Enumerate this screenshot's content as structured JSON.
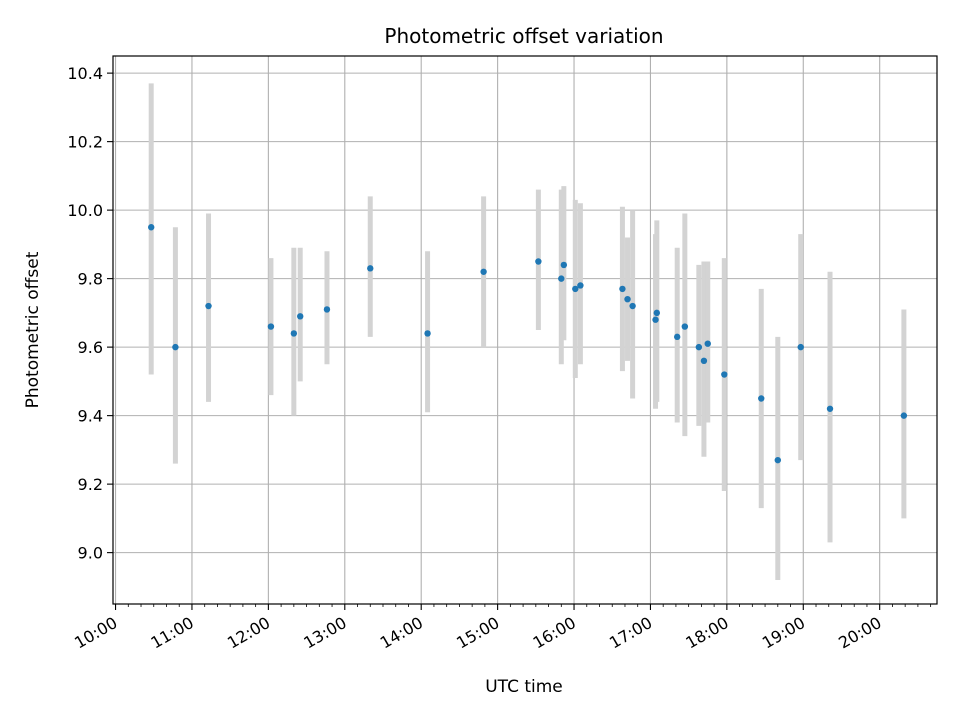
{
  "chart_data": {
    "type": "scatter",
    "title": "Photometric offset variation",
    "xlabel": "UTC time",
    "ylabel": "Photometric offset",
    "grid": true,
    "x_unit": "UTC",
    "xlim": [
      "09:58",
      "20:45"
    ],
    "ylim": [
      8.85,
      10.45
    ],
    "x_ticks": [
      "10:00",
      "11:00",
      "12:00",
      "13:00",
      "14:00",
      "15:00",
      "16:00",
      "17:00",
      "18:00",
      "19:00",
      "20:00"
    ],
    "y_ticks": [
      9.0,
      9.2,
      9.4,
      9.6,
      9.8,
      10.0,
      10.2,
      10.4
    ],
    "y_tick_labels": [
      "9.0",
      "9.2",
      "9.4",
      "9.6",
      "9.8",
      "10.0",
      "10.2",
      "10.4"
    ],
    "colors": {
      "points": "#1f77b4",
      "error_bars": "#d3d3d3",
      "grid": "#b0b0b0"
    },
    "series": [
      {
        "points": [
          {
            "x": "10:28",
            "y": 9.95,
            "ylow": 9.52,
            "yhigh": 10.37
          },
          {
            "x": "10:47",
            "y": 9.6,
            "ylow": 9.26,
            "yhigh": 9.95
          },
          {
            "x": "11:13",
            "y": 9.72,
            "ylow": 9.44,
            "yhigh": 9.99
          },
          {
            "x": "12:02",
            "y": 9.66,
            "ylow": 9.46,
            "yhigh": 9.86
          },
          {
            "x": "12:20",
            "y": 9.64,
            "ylow": 9.4,
            "yhigh": 9.89
          },
          {
            "x": "12:25",
            "y": 9.69,
            "ylow": 9.5,
            "yhigh": 9.89
          },
          {
            "x": "12:46",
            "y": 9.71,
            "ylow": 9.55,
            "yhigh": 9.88
          },
          {
            "x": "13:20",
            "y": 9.83,
            "ylow": 9.63,
            "yhigh": 10.04
          },
          {
            "x": "14:05",
            "y": 9.64,
            "ylow": 9.41,
            "yhigh": 9.88
          },
          {
            "x": "14:49",
            "y": 9.82,
            "ylow": 9.6,
            "yhigh": 10.04
          },
          {
            "x": "15:32",
            "y": 9.85,
            "ylow": 9.65,
            "yhigh": 10.06
          },
          {
            "x": "15:50",
            "y": 9.8,
            "ylow": 9.55,
            "yhigh": 10.06
          },
          {
            "x": "15:52",
            "y": 9.84,
            "ylow": 9.62,
            "yhigh": 10.07
          },
          {
            "x": "16:01",
            "y": 9.77,
            "ylow": 9.51,
            "yhigh": 10.03
          },
          {
            "x": "16:05",
            "y": 9.78,
            "ylow": 9.55,
            "yhigh": 10.02
          },
          {
            "x": "16:38",
            "y": 9.77,
            "ylow": 9.53,
            "yhigh": 10.01
          },
          {
            "x": "16:42",
            "y": 9.74,
            "ylow": 9.56,
            "yhigh": 9.92
          },
          {
            "x": "16:46",
            "y": 9.72,
            "ylow": 9.45,
            "yhigh": 10.0
          },
          {
            "x": "17:04",
            "y": 9.68,
            "ylow": 9.42,
            "yhigh": 9.93
          },
          {
            "x": "17:05",
            "y": 9.7,
            "ylow": 9.44,
            "yhigh": 9.97
          },
          {
            "x": "17:21",
            "y": 9.63,
            "ylow": 9.38,
            "yhigh": 9.89
          },
          {
            "x": "17:27",
            "y": 9.66,
            "ylow": 9.34,
            "yhigh": 9.99
          },
          {
            "x": "17:38",
            "y": 9.6,
            "ylow": 9.37,
            "yhigh": 9.84
          },
          {
            "x": "17:42",
            "y": 9.56,
            "ylow": 9.28,
            "yhigh": 9.85
          },
          {
            "x": "17:45",
            "y": 9.61,
            "ylow": 9.38,
            "yhigh": 9.85
          },
          {
            "x": "17:58",
            "y": 9.52,
            "ylow": 9.18,
            "yhigh": 9.86
          },
          {
            "x": "18:27",
            "y": 9.45,
            "ylow": 9.13,
            "yhigh": 9.77
          },
          {
            "x": "18:40",
            "y": 9.27,
            "ylow": 8.92,
            "yhigh": 9.63
          },
          {
            "x": "18:58",
            "y": 9.6,
            "ylow": 9.27,
            "yhigh": 9.93
          },
          {
            "x": "19:21",
            "y": 9.42,
            "ylow": 9.03,
            "yhigh": 9.82
          },
          {
            "x": "20:19",
            "y": 9.4,
            "ylow": 9.1,
            "yhigh": 9.71
          }
        ]
      }
    ]
  }
}
